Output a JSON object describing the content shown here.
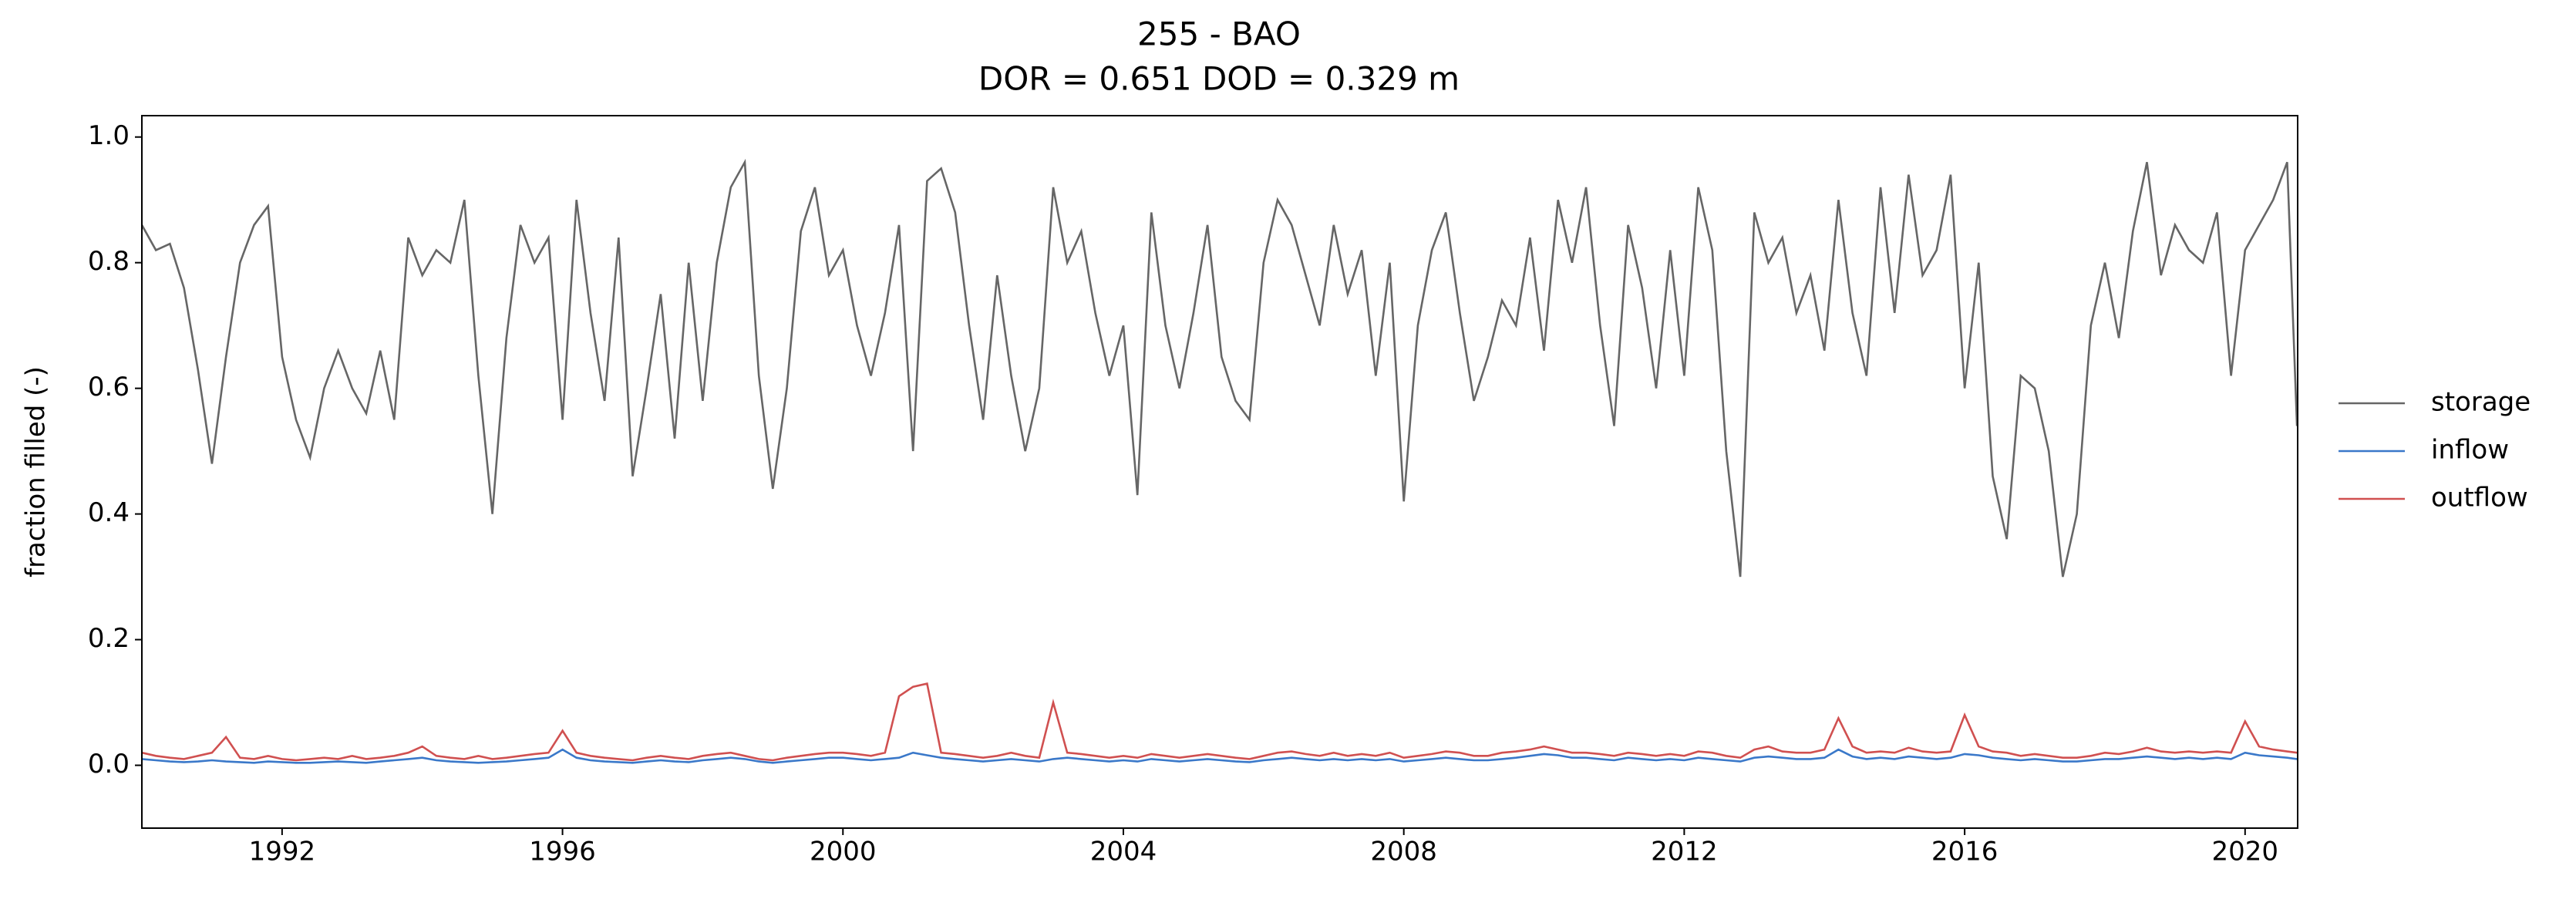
{
  "chart_data": {
    "type": "line",
    "title": "255 - BAO",
    "subtitle": "DOR = 0.651  DOD = 0.329 m",
    "y_label": "fraction filled (-)",
    "legend": "right",
    "grid": false,
    "xlim": [
      1990.0,
      2020.75
    ],
    "ylim": [
      -0.1,
      1.034
    ],
    "xticks": [
      1992,
      1996,
      2000,
      2004,
      2008,
      2012,
      2016,
      2020
    ],
    "yticks": [
      {
        "value": 0,
        "label": "0.0"
      },
      0.2,
      0.4,
      0.6,
      0.8,
      {
        "value": 1,
        "label": "1.0"
      }
    ],
    "x": [
      1990.0,
      1990.2,
      1990.4,
      1990.6,
      1990.8,
      1991.0,
      1991.2,
      1991.4,
      1991.6,
      1991.8,
      1992.0,
      1992.2,
      1992.4,
      1992.6,
      1992.8,
      1993.0,
      1993.2,
      1993.4,
      1993.6,
      1993.8,
      1994.0,
      1994.2,
      1994.4,
      1994.6,
      1994.8,
      1995.0,
      1995.2,
      1995.4,
      1995.6,
      1995.8,
      1996.0,
      1996.2,
      1996.4,
      1996.6,
      1996.8,
      1997.0,
      1997.2,
      1997.4,
      1997.6,
      1997.8,
      1998.0,
      1998.2,
      1998.4,
      1998.6,
      1998.8,
      1999.0,
      1999.2,
      1999.4,
      1999.6,
      1999.8,
      2000.0,
      2000.2,
      2000.4,
      2000.6,
      2000.8,
      2001.0,
      2001.2,
      2001.4,
      2001.6,
      2001.8,
      2002.0,
      2002.2,
      2002.4,
      2002.6,
      2002.8,
      2003.0,
      2003.2,
      2003.4,
      2003.6,
      2003.8,
      2004.0,
      2004.2,
      2004.4,
      2004.6,
      2004.8,
      2005.0,
      2005.2,
      2005.4,
      2005.6,
      2005.8,
      2006.0,
      2006.2,
      2006.4,
      2006.6,
      2006.8,
      2007.0,
      2007.2,
      2007.4,
      2007.6,
      2007.8,
      2008.0,
      2008.2,
      2008.4,
      2008.6,
      2008.8,
      2009.0,
      2009.2,
      2009.4,
      2009.6,
      2009.8,
      2010.0,
      2010.2,
      2010.4,
      2010.6,
      2010.8,
      2011.0,
      2011.2,
      2011.4,
      2011.6,
      2011.8,
      2012.0,
      2012.2,
      2012.4,
      2012.6,
      2012.8,
      2013.0,
      2013.2,
      2013.4,
      2013.6,
      2013.8,
      2014.0,
      2014.2,
      2014.4,
      2014.6,
      2014.8,
      2015.0,
      2015.2,
      2015.4,
      2015.6,
      2015.8,
      2016.0,
      2016.2,
      2016.4,
      2016.6,
      2016.8,
      2017.0,
      2017.2,
      2017.4,
      2017.6,
      2017.8,
      2018.0,
      2018.2,
      2018.4,
      2018.6,
      2018.8,
      2019.0,
      2019.2,
      2019.4,
      2019.6,
      2019.8,
      2020.0,
      2020.2,
      2020.4,
      2020.6,
      2020.74
    ],
    "series": [
      {
        "name": "storage",
        "color": "#666666",
        "values": [
          0.86,
          0.82,
          0.83,
          0.76,
          0.63,
          0.48,
          0.65,
          0.8,
          0.86,
          0.89,
          0.65,
          0.55,
          0.49,
          0.6,
          0.66,
          0.6,
          0.56,
          0.66,
          0.55,
          0.84,
          0.78,
          0.82,
          0.8,
          0.9,
          0.62,
          0.4,
          0.68,
          0.86,
          0.8,
          0.84,
          0.55,
          0.9,
          0.72,
          0.58,
          0.84,
          0.46,
          0.6,
          0.75,
          0.52,
          0.8,
          0.58,
          0.8,
          0.92,
          0.96,
          0.62,
          0.44,
          0.6,
          0.85,
          0.92,
          0.78,
          0.82,
          0.7,
          0.62,
          0.72,
          0.86,
          0.5,
          0.93,
          0.95,
          0.88,
          0.7,
          0.55,
          0.78,
          0.62,
          0.5,
          0.6,
          0.92,
          0.8,
          0.85,
          0.72,
          0.62,
          0.7,
          0.43,
          0.88,
          0.7,
          0.6,
          0.72,
          0.86,
          0.65,
          0.58,
          0.55,
          0.8,
          0.9,
          0.86,
          0.78,
          0.7,
          0.86,
          0.75,
          0.82,
          0.62,
          0.8,
          0.42,
          0.7,
          0.82,
          0.88,
          0.72,
          0.58,
          0.65,
          0.74,
          0.7,
          0.84,
          0.66,
          0.9,
          0.8,
          0.92,
          0.7,
          0.54,
          0.86,
          0.76,
          0.6,
          0.82,
          0.62,
          0.92,
          0.82,
          0.5,
          0.3,
          0.88,
          0.8,
          0.84,
          0.72,
          0.78,
          0.66,
          0.9,
          0.72,
          0.62,
          0.92,
          0.72,
          0.94,
          0.78,
          0.82,
          0.94,
          0.6,
          0.8,
          0.46,
          0.36,
          0.62,
          0.6,
          0.5,
          0.3,
          0.4,
          0.7,
          0.8,
          0.68,
          0.85,
          0.96,
          0.78,
          0.86,
          0.82,
          0.8,
          0.88,
          0.62,
          0.82,
          0.86,
          0.9,
          0.96,
          0.54
        ]
      },
      {
        "name": "inflow",
        "color": "#3a78c9",
        "values": [
          0.01,
          0.008,
          0.006,
          0.005,
          0.006,
          0.008,
          0.006,
          0.005,
          0.004,
          0.006,
          0.005,
          0.004,
          0.004,
          0.005,
          0.006,
          0.005,
          0.004,
          0.006,
          0.008,
          0.01,
          0.012,
          0.008,
          0.006,
          0.005,
          0.004,
          0.005,
          0.006,
          0.008,
          0.01,
          0.012,
          0.025,
          0.012,
          0.008,
          0.006,
          0.005,
          0.004,
          0.006,
          0.008,
          0.006,
          0.005,
          0.008,
          0.01,
          0.012,
          0.01,
          0.006,
          0.004,
          0.006,
          0.008,
          0.01,
          0.012,
          0.012,
          0.01,
          0.008,
          0.01,
          0.012,
          0.02,
          0.016,
          0.012,
          0.01,
          0.008,
          0.006,
          0.008,
          0.01,
          0.008,
          0.006,
          0.01,
          0.012,
          0.01,
          0.008,
          0.006,
          0.008,
          0.006,
          0.01,
          0.008,
          0.006,
          0.008,
          0.01,
          0.008,
          0.006,
          0.005,
          0.008,
          0.01,
          0.012,
          0.01,
          0.008,
          0.01,
          0.008,
          0.01,
          0.008,
          0.01,
          0.006,
          0.008,
          0.01,
          0.012,
          0.01,
          0.008,
          0.008,
          0.01,
          0.012,
          0.015,
          0.018,
          0.016,
          0.012,
          0.012,
          0.01,
          0.008,
          0.012,
          0.01,
          0.008,
          0.01,
          0.008,
          0.012,
          0.01,
          0.008,
          0.006,
          0.012,
          0.014,
          0.012,
          0.01,
          0.01,
          0.012,
          0.025,
          0.014,
          0.01,
          0.012,
          0.01,
          0.014,
          0.012,
          0.01,
          0.012,
          0.018,
          0.016,
          0.012,
          0.01,
          0.008,
          0.01,
          0.008,
          0.006,
          0.006,
          0.008,
          0.01,
          0.01,
          0.012,
          0.014,
          0.012,
          0.01,
          0.012,
          0.01,
          0.012,
          0.01,
          0.02,
          0.016,
          0.014,
          0.012,
          0.01
        ]
      },
      {
        "name": "outflow",
        "color": "#d05050",
        "values": [
          0.02,
          0.015,
          0.012,
          0.01,
          0.015,
          0.02,
          0.045,
          0.012,
          0.01,
          0.015,
          0.01,
          0.008,
          0.01,
          0.012,
          0.01,
          0.015,
          0.01,
          0.012,
          0.015,
          0.02,
          0.03,
          0.015,
          0.012,
          0.01,
          0.015,
          0.01,
          0.012,
          0.015,
          0.018,
          0.02,
          0.055,
          0.02,
          0.015,
          0.012,
          0.01,
          0.008,
          0.012,
          0.015,
          0.012,
          0.01,
          0.015,
          0.018,
          0.02,
          0.015,
          0.01,
          0.008,
          0.012,
          0.015,
          0.018,
          0.02,
          0.02,
          0.018,
          0.015,
          0.02,
          0.11,
          0.125,
          0.13,
          0.02,
          0.018,
          0.015,
          0.012,
          0.015,
          0.02,
          0.015,
          0.012,
          0.1,
          0.02,
          0.018,
          0.015,
          0.012,
          0.015,
          0.012,
          0.018,
          0.015,
          0.012,
          0.015,
          0.018,
          0.015,
          0.012,
          0.01,
          0.015,
          0.02,
          0.022,
          0.018,
          0.015,
          0.02,
          0.015,
          0.018,
          0.015,
          0.02,
          0.012,
          0.015,
          0.018,
          0.022,
          0.02,
          0.015,
          0.015,
          0.02,
          0.022,
          0.025,
          0.03,
          0.025,
          0.02,
          0.02,
          0.018,
          0.015,
          0.02,
          0.018,
          0.015,
          0.018,
          0.015,
          0.022,
          0.02,
          0.015,
          0.012,
          0.025,
          0.03,
          0.022,
          0.02,
          0.02,
          0.025,
          0.075,
          0.03,
          0.02,
          0.022,
          0.02,
          0.028,
          0.022,
          0.02,
          0.022,
          0.08,
          0.03,
          0.022,
          0.02,
          0.015,
          0.018,
          0.015,
          0.012,
          0.012,
          0.015,
          0.02,
          0.018,
          0.022,
          0.028,
          0.022,
          0.02,
          0.022,
          0.02,
          0.022,
          0.02,
          0.07,
          0.03,
          0.025,
          0.022,
          0.02
        ]
      }
    ]
  }
}
